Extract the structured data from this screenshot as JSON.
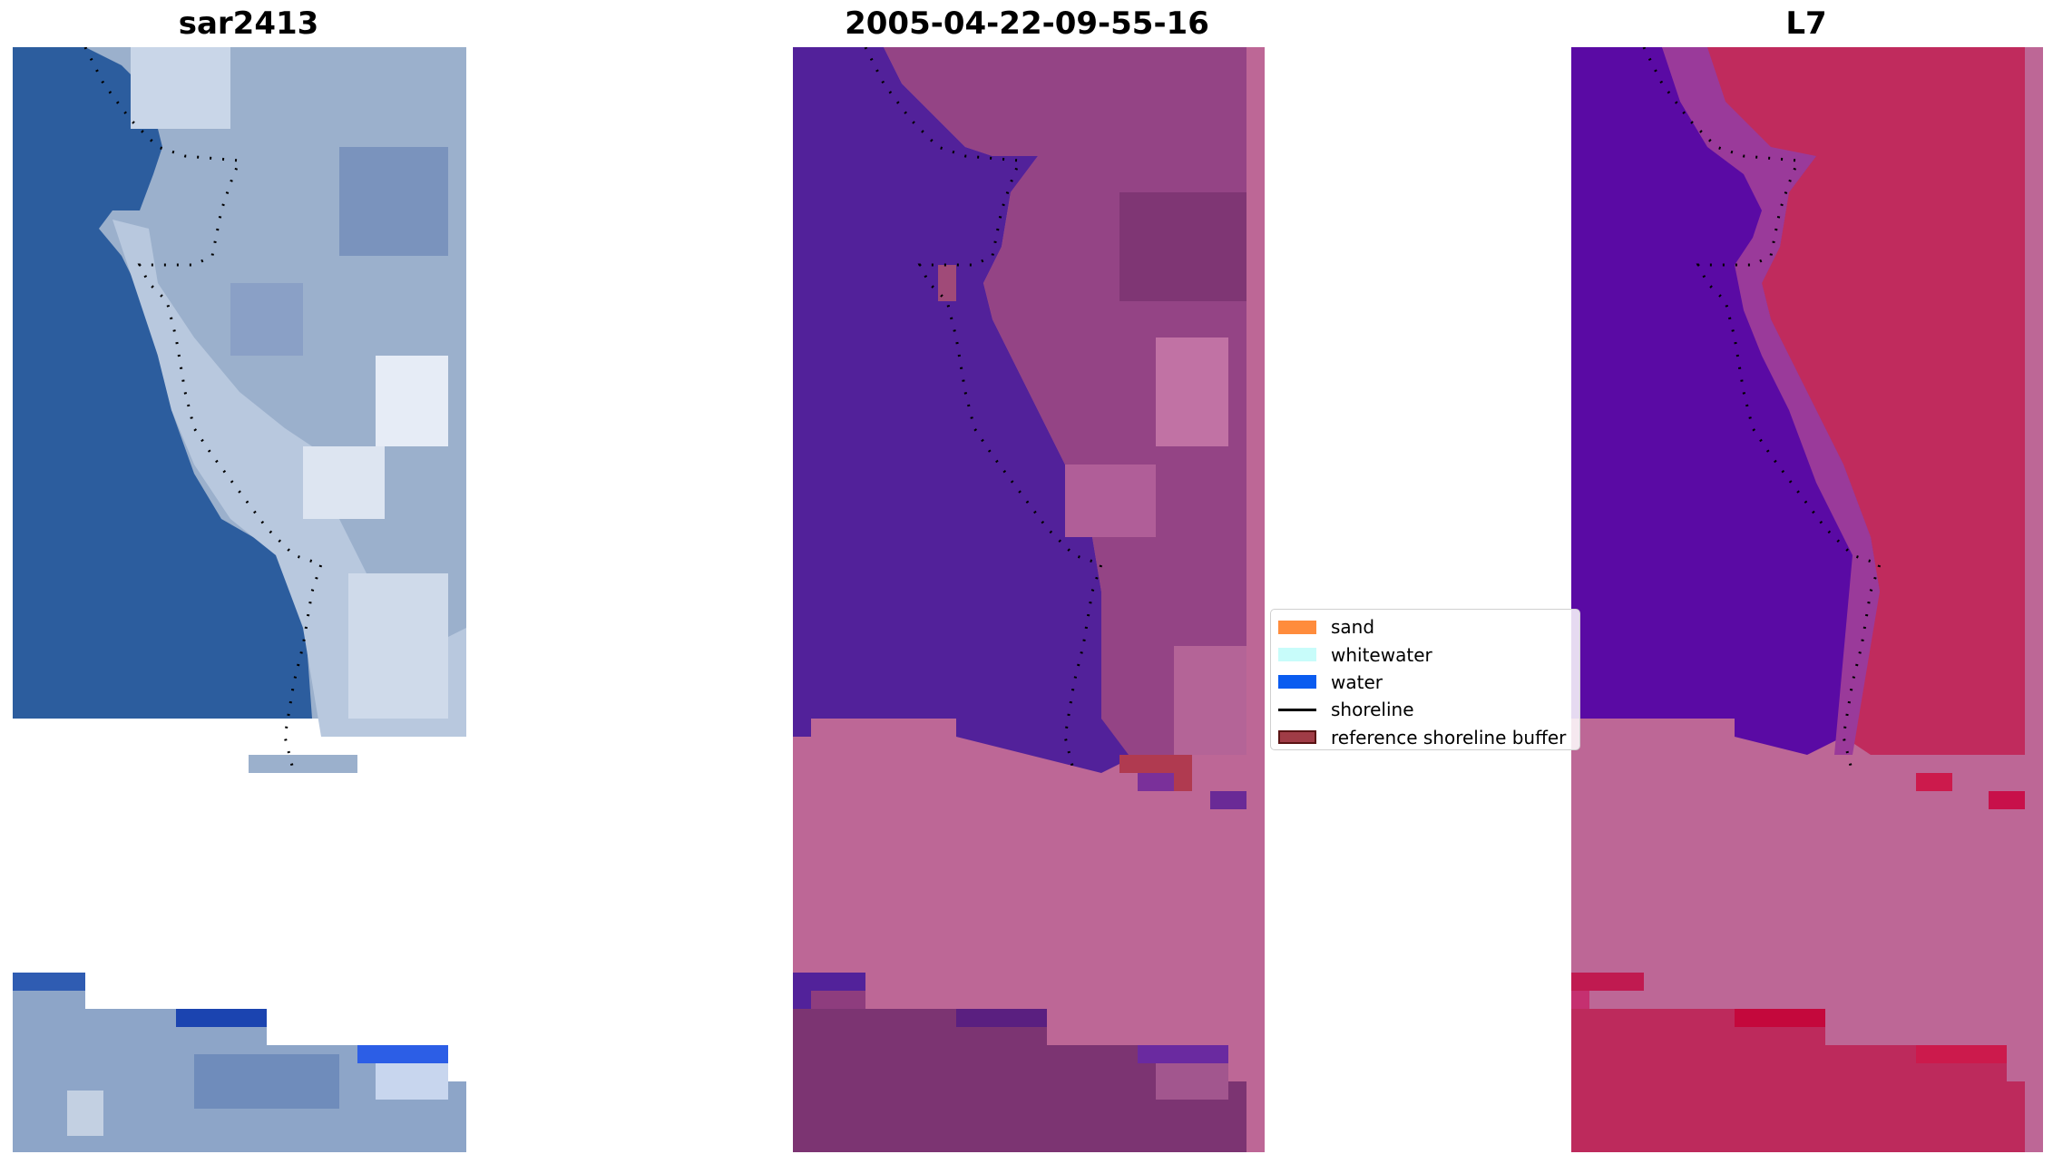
{
  "panels": [
    {
      "title": "sar2413"
    },
    {
      "title": "2005-04-22-09-55-16"
    },
    {
      "title": "L7"
    }
  ],
  "legend": {
    "items": [
      {
        "label": "sand",
        "color": "#ff8c3c"
      },
      {
        "label": "whitewater",
        "color": "#c8fcfa"
      },
      {
        "label": "water",
        "color": "#0a5cf0"
      },
      {
        "label": "shoreline",
        "color": "#000000"
      },
      {
        "label": "reference shoreline buffer",
        "color": "#a03c46"
      }
    ]
  },
  "colors": {
    "rgb_water": "#2a5a9c",
    "rgb_land": "#8fa6c8",
    "rgb_bright": "#d8e0ec",
    "class_water": "#52229a",
    "class_land": "#8e3d7e",
    "class_nodata": "#bd6796",
    "index_water": "#5a0aa4",
    "index_land": "#bb2a5c",
    "index_nodata": "#bd6796"
  }
}
